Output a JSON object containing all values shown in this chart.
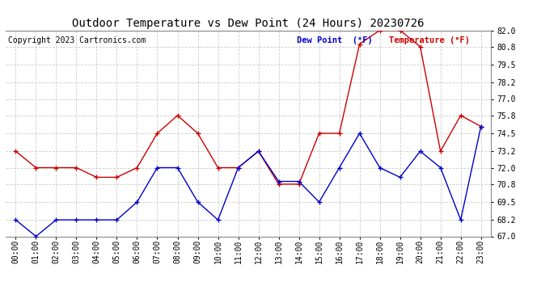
{
  "title": "Outdoor Temperature vs Dew Point (24 Hours) 20230726",
  "copyright": "Copyright 2023 Cartronics.com",
  "legend_dew": "Dew Point  (°F)",
  "legend_temp": "Temperature (°F)",
  "x_labels": [
    "00:00",
    "01:00",
    "02:00",
    "03:00",
    "04:00",
    "05:00",
    "06:00",
    "07:00",
    "08:00",
    "09:00",
    "10:00",
    "11:00",
    "12:00",
    "13:00",
    "14:00",
    "15:00",
    "16:00",
    "17:00",
    "18:00",
    "19:00",
    "20:00",
    "21:00",
    "22:00",
    "23:00"
  ],
  "temperature": [
    73.2,
    72.0,
    72.0,
    72.0,
    71.3,
    71.3,
    72.0,
    74.5,
    75.8,
    74.5,
    72.0,
    72.0,
    73.2,
    70.8,
    70.8,
    74.5,
    74.5,
    81.0,
    82.0,
    82.0,
    80.8,
    73.2,
    75.8,
    75.0
  ],
  "dew_point": [
    68.2,
    67.0,
    68.2,
    68.2,
    68.2,
    68.2,
    69.5,
    72.0,
    72.0,
    69.5,
    68.2,
    72.0,
    73.2,
    71.0,
    71.0,
    69.5,
    72.0,
    74.5,
    72.0,
    71.3,
    73.2,
    72.0,
    68.2,
    75.0
  ],
  "temp_color": "#cc0000",
  "dew_color": "#0000cc",
  "ylim_min": 67.0,
  "ylim_max": 82.0,
  "yticks": [
    67.0,
    68.2,
    69.5,
    70.8,
    72.0,
    73.2,
    74.5,
    75.8,
    77.0,
    78.2,
    79.5,
    80.8,
    82.0
  ],
  "background_color": "#ffffff",
  "grid_color": "#cccccc",
  "title_fontsize": 10,
  "tick_fontsize": 7,
  "copyright_fontsize": 7,
  "legend_fontsize": 7.5
}
